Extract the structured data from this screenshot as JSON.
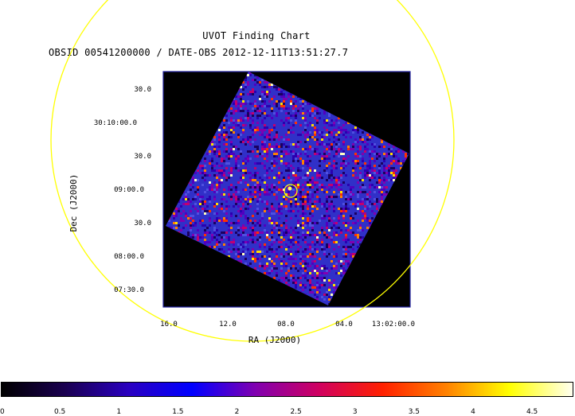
{
  "title": "UVOT Finding Chart",
  "subtitle": "OBSID 00541200000 / DATE-OBS 2012-12-11T13:51:27.7",
  "xaxis": {
    "label": "RA (J2000)",
    "ticks": [
      "16.0",
      "12.0",
      "08.0",
      "04.0",
      "13:02:00.0"
    ]
  },
  "yaxis": {
    "label": "Dec (J2000)",
    "ticks": [
      "30.0",
      "30:10:00.0",
      "30.0",
      "09:00.0",
      "30.0",
      "08:00.0",
      "07:30.0"
    ]
  },
  "colorbar": {
    "ticks": [
      "0",
      "0.5",
      "1",
      "1.5",
      "2",
      "2.5",
      "3",
      "3.5",
      "4",
      "4.5"
    ],
    "range": [
      0,
      4.85
    ],
    "colormap": [
      "#000000",
      "#1a0050",
      "#2a00c0",
      "#0000ff",
      "#8000b0",
      "#d00060",
      "#ff2000",
      "#ff8000",
      "#ffff00",
      "#fffff0"
    ]
  },
  "colors": {
    "image_background": "#000000",
    "field_base": "#3a3ad0",
    "circle": "#ffff00",
    "frame": "#2020a0"
  }
}
